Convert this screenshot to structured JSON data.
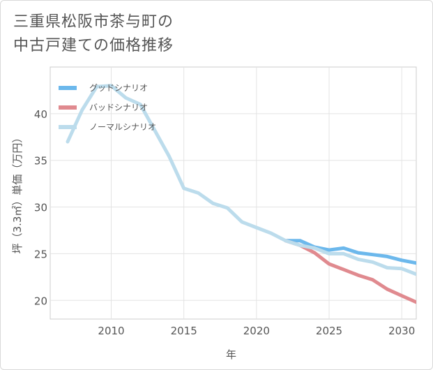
{
  "header": {
    "title_line1": "三重県松阪市茶与町の",
    "title_line2": "中古戸建ての価格推移"
  },
  "chart_data": {
    "type": "line",
    "xlabel": "年",
    "ylabel": "坪（3.3㎡）単価（万円）",
    "xlim": [
      2005.8,
      2031
    ],
    "ylim": [
      18,
      45
    ],
    "xticks": [
      2010,
      2015,
      2020,
      2025,
      2030
    ],
    "yticks": [
      20,
      25,
      30,
      35,
      40
    ],
    "grid": true,
    "legend": "top-left",
    "series": [
      {
        "name": "グッドシナリオ",
        "color": "#6cb8ec",
        "x": [
          2022,
          2023,
          2024,
          2025,
          2026,
          2027,
          2028,
          2029,
          2030,
          2031
        ],
        "y": [
          26.4,
          26.4,
          25.7,
          25.4,
          25.6,
          25.1,
          24.9,
          24.7,
          24.3,
          24.0
        ]
      },
      {
        "name": "バッドシナリオ",
        "color": "#e08a8f",
        "x": [
          2022,
          2023,
          2024,
          2025,
          2026,
          2027,
          2028,
          2029,
          2030,
          2031
        ],
        "y": [
          26.4,
          25.9,
          25.1,
          23.9,
          23.3,
          22.7,
          22.2,
          21.2,
          20.5,
          19.8
        ]
      },
      {
        "name": "ノーマルシナリオ",
        "color": "#bcdcec",
        "x": [
          2007,
          2008,
          2009,
          2010,
          2011,
          2012,
          2013,
          2014,
          2015,
          2016,
          2017,
          2018,
          2019,
          2020,
          2021,
          2022,
          2023,
          2024,
          2025,
          2026,
          2027,
          2028,
          2029,
          2030,
          2031
        ],
        "y": [
          37.0,
          40.4,
          42.9,
          43.0,
          41.7,
          41.0,
          38.2,
          35.4,
          32.0,
          31.5,
          30.4,
          29.9,
          28.4,
          27.8,
          27.2,
          26.4,
          25.9,
          25.6,
          25.0,
          25.0,
          24.4,
          24.1,
          23.5,
          23.4,
          22.8
        ]
      }
    ]
  }
}
